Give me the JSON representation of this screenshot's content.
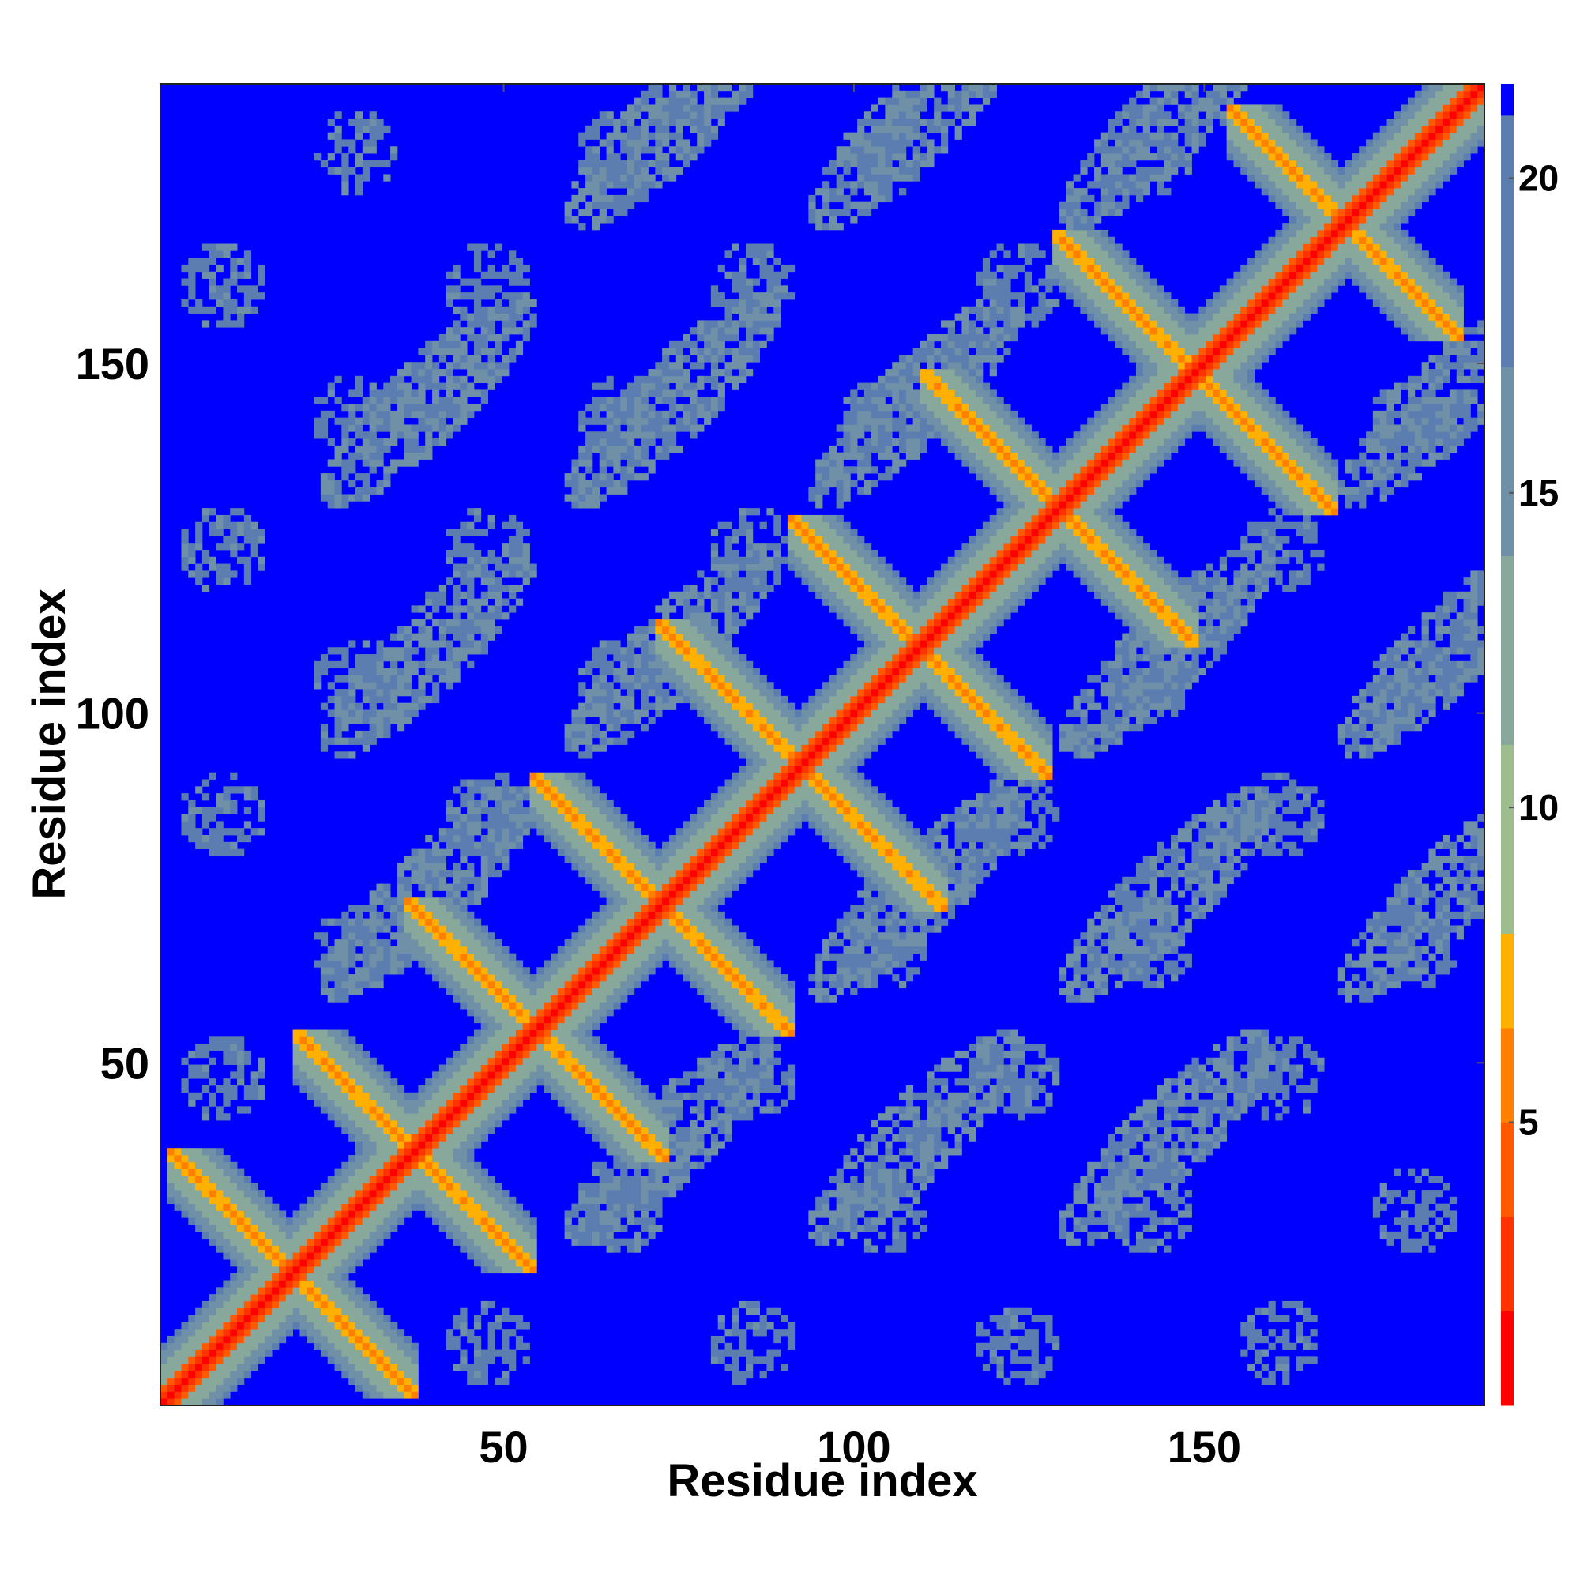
{
  "chart_data": {
    "type": "heatmap",
    "title": "",
    "xlabel": "Residue index",
    "ylabel": "Residue index",
    "x_ticks": [
      50,
      100,
      150
    ],
    "y_ticks": [
      50,
      100,
      150
    ],
    "xlim": [
      1,
      190
    ],
    "ylim": [
      1,
      190
    ],
    "grid": false,
    "colorbar": {
      "ticks": [
        5,
        10,
        15,
        20
      ],
      "range": [
        0.5,
        21.5
      ],
      "colors": [
        "#ff0000",
        "#ff3300",
        "#ff5a00",
        "#ff8000",
        "#ffb000",
        "#9dbd8d",
        "#89a89c",
        "#7090a8",
        "#5b7db0",
        "#0000ff"
      ],
      "levels": [
        0.5,
        2,
        3.5,
        5,
        6.5,
        8,
        11,
        14,
        17,
        21,
        21.5
      ]
    },
    "structure": {
      "n_residues": 190,
      "diagonal_value": 1,
      "background_value": 21,
      "antidiagonal_contacts": [
        {
          "i_range": [
            4,
            35
          ],
          "sum": 39
        },
        {
          "i_range": [
            22,
            52
          ],
          "sum": 74
        },
        {
          "i_range": [
            38,
            71
          ],
          "sum": 109
        },
        {
          "i_range": [
            56,
            89
          ],
          "sum": 145
        },
        {
          "i_range": [
            74,
            108
          ],
          "sum": 185
        },
        {
          "i_range": [
            93,
            126
          ],
          "sum": 219
        },
        {
          "i_range": [
            112,
            145
          ],
          "sum": 259
        },
        {
          "i_range": [
            131,
            157
          ],
          "sum": 298
        },
        {
          "i_range": [
            156,
            185
          ],
          "sum": 341
        }
      ]
    }
  }
}
